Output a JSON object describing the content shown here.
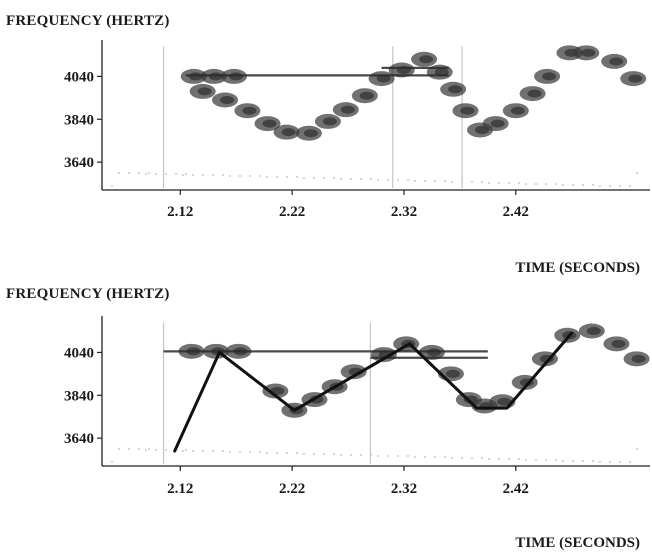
{
  "chart_data": [
    {
      "type": "spectrogram",
      "ylabel": "FREQUENCY (HERTZ)",
      "xlabel": "TIME (SECONDS)",
      "x_ticks": [
        2.12,
        2.22,
        2.32,
        2.42
      ],
      "y_ticks": [
        3640,
        3840,
        4040
      ],
      "xlim": [
        2.05,
        2.54
      ],
      "ylim": [
        3510,
        4210
      ],
      "blobs": [
        {
          "x": 2.132,
          "y": 4040
        },
        {
          "x": 2.15,
          "y": 4040
        },
        {
          "x": 2.168,
          "y": 4040
        },
        {
          "x": 2.14,
          "y": 3970
        },
        {
          "x": 2.16,
          "y": 3930
        },
        {
          "x": 2.18,
          "y": 3880
        },
        {
          "x": 2.198,
          "y": 3820
        },
        {
          "x": 2.215,
          "y": 3780
        },
        {
          "x": 2.235,
          "y": 3775
        },
        {
          "x": 2.252,
          "y": 3830
        },
        {
          "x": 2.268,
          "y": 3885
        },
        {
          "x": 2.285,
          "y": 3950
        },
        {
          "x": 2.3,
          "y": 4030
        },
        {
          "x": 2.318,
          "y": 4070
        },
        {
          "x": 2.338,
          "y": 4120
        },
        {
          "x": 2.352,
          "y": 4060
        },
        {
          "x": 2.364,
          "y": 3980
        },
        {
          "x": 2.375,
          "y": 3880
        },
        {
          "x": 2.388,
          "y": 3790
        },
        {
          "x": 2.402,
          "y": 3820
        },
        {
          "x": 2.42,
          "y": 3880
        },
        {
          "x": 2.435,
          "y": 3960
        },
        {
          "x": 2.448,
          "y": 4040
        },
        {
          "x": 2.468,
          "y": 4150
        },
        {
          "x": 2.483,
          "y": 4150
        },
        {
          "x": 2.508,
          "y": 4110
        },
        {
          "x": 2.525,
          "y": 4030
        }
      ],
      "h_lines": [
        {
          "x0": 2.125,
          "x1": 2.36,
          "y": 4045
        },
        {
          "x0": 2.3,
          "x1": 2.36,
          "y": 4080
        }
      ],
      "v_lines": [
        {
          "x": 2.105,
          "y0": 3520,
          "y1": 4180
        },
        {
          "x": 2.31,
          "y0": 3520,
          "y1": 4180
        },
        {
          "x": 2.372,
          "y0": 3520,
          "y1": 4180
        }
      ]
    },
    {
      "type": "spectrogram",
      "ylabel": "FREQUENCY (HERTZ)",
      "xlabel": "TIME (SECONDS)",
      "x_ticks": [
        2.12,
        2.22,
        2.32,
        2.42
      ],
      "y_ticks": [
        3640,
        3840,
        4040
      ],
      "xlim": [
        2.05,
        2.54
      ],
      "ylim": [
        3510,
        4210
      ],
      "blobs": [
        {
          "x": 2.13,
          "y": 4045
        },
        {
          "x": 2.152,
          "y": 4045
        },
        {
          "x": 2.172,
          "y": 4045
        },
        {
          "x": 2.205,
          "y": 3860
        },
        {
          "x": 2.222,
          "y": 3770
        },
        {
          "x": 2.24,
          "y": 3820
        },
        {
          "x": 2.258,
          "y": 3880
        },
        {
          "x": 2.275,
          "y": 3950
        },
        {
          "x": 2.302,
          "y": 4030
        },
        {
          "x": 2.322,
          "y": 4080
        },
        {
          "x": 2.345,
          "y": 4040
        },
        {
          "x": 2.362,
          "y": 3940
        },
        {
          "x": 2.378,
          "y": 3820
        },
        {
          "x": 2.392,
          "y": 3790
        },
        {
          "x": 2.408,
          "y": 3810
        },
        {
          "x": 2.428,
          "y": 3900
        },
        {
          "x": 2.446,
          "y": 4010
        },
        {
          "x": 2.466,
          "y": 4120
        },
        {
          "x": 2.488,
          "y": 4140
        },
        {
          "x": 2.51,
          "y": 4080
        },
        {
          "x": 2.528,
          "y": 4010
        }
      ],
      "trace": [
        {
          "x": 2.115,
          "y": 3580
        },
        {
          "x": 2.155,
          "y": 4040
        },
        {
          "x": 2.222,
          "y": 3770
        },
        {
          "x": 2.325,
          "y": 4080
        },
        {
          "x": 2.385,
          "y": 3780
        },
        {
          "x": 2.412,
          "y": 3780
        },
        {
          "x": 2.47,
          "y": 4130
        }
      ],
      "h_lines": [
        {
          "x0": 2.105,
          "x1": 2.395,
          "y": 4045
        },
        {
          "x0": 2.29,
          "x1": 2.395,
          "y": 4015
        }
      ],
      "v_lines": [
        {
          "x": 2.105,
          "y0": 3520,
          "y1": 4180
        },
        {
          "x": 2.29,
          "y0": 3520,
          "y1": 4180
        }
      ]
    }
  ]
}
